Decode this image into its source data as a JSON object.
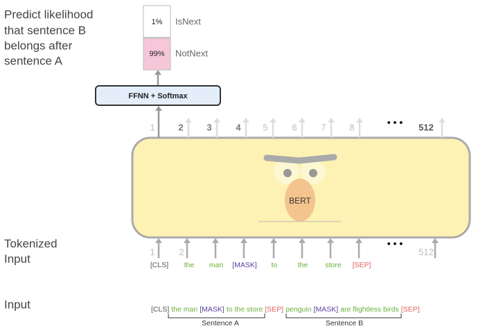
{
  "caption": {
    "lines": [
      "Predict likelihood",
      "that sentence B",
      "belongs after",
      "sentence A"
    ]
  },
  "outputs": [
    {
      "value": "1%",
      "label": "IsNext"
    },
    {
      "value": "99%",
      "label": "NotNext"
    }
  ],
  "classifier": "FFNN + Softmax",
  "output_positions": [
    "1",
    "2",
    "3",
    "4",
    "5",
    "6",
    "7",
    "8",
    "• • •",
    "512"
  ],
  "model": "BERT",
  "tokenized_label": [
    "Tokenized",
    "Input"
  ],
  "input_positions": [
    "1",
    "2",
    "• • •",
    "512"
  ],
  "tokens": [
    "[CLS]",
    "the",
    "man",
    "[MASK]",
    "to",
    "the",
    "store",
    "[SEP]"
  ],
  "input_label": "Input",
  "input_sequence": [
    "[CLS]",
    "the man",
    "[MASK]",
    "to the store",
    "[SEP]",
    "penguin",
    "[MASK]",
    "are flightless birds",
    "[SEP]"
  ],
  "sentences": [
    "Sentence A",
    "Sentence B"
  ]
}
